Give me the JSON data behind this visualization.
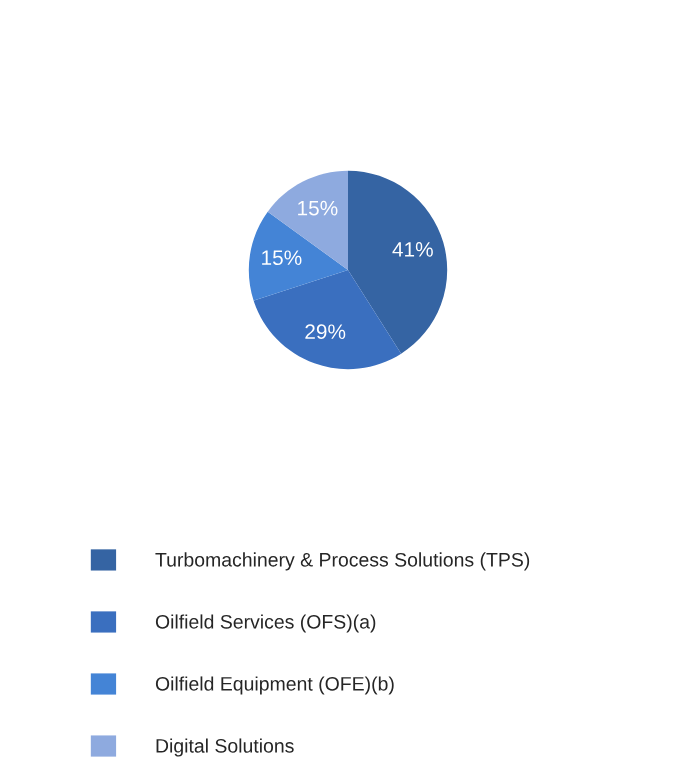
{
  "chart_data": {
    "type": "pie",
    "categories": [
      "Turbomachinery & Process Solutions (TPS)",
      "Oilfield Services (OFS)(a)",
      "Oilfield Equipment (OFE)(b)",
      "Digital Solutions"
    ],
    "values": [
      41,
      29,
      15,
      15
    ],
    "colors": [
      "#3564a3",
      "#3a6fbf",
      "#4484d6",
      "#8eaadf"
    ],
    "value_labels": [
      "41%",
      "29%",
      "15%",
      "15%"
    ],
    "legend": "bottom"
  }
}
